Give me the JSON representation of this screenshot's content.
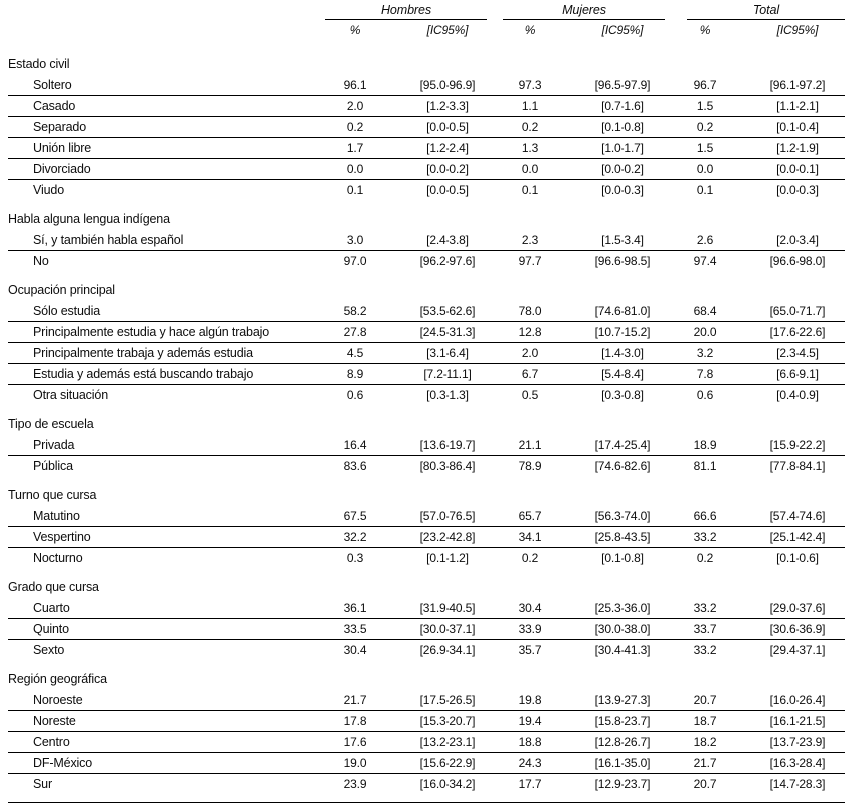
{
  "table": {
    "column_groups": [
      {
        "label": "Hombres"
      },
      {
        "label": "Mujeres"
      },
      {
        "label": "Total"
      }
    ],
    "subheaders": {
      "pct": "%",
      "ic": "[IC95%]"
    },
    "sections": [
      {
        "title": "Estado civil",
        "rows": [
          {
            "label": "Soltero",
            "values": [
              "96.1",
              "[95.0-96.9]",
              "97.3",
              "[96.5-97.9]",
              "96.7",
              "[96.1-97.2]"
            ]
          },
          {
            "label": "Casado",
            "values": [
              "2.0",
              "[1.2-3.3]",
              "1.1",
              "[0.7-1.6]",
              "1.5",
              "[1.1-2.1]"
            ]
          },
          {
            "label": "Separado",
            "values": [
              "0.2",
              "[0.0-0.5]",
              "0.2",
              "[0.1-0.8]",
              "0.2",
              "[0.1-0.4]"
            ]
          },
          {
            "label": "Unión libre",
            "values": [
              "1.7",
              "[1.2-2.4]",
              "1.3",
              "[1.0-1.7]",
              "1.5",
              "[1.2-1.9]"
            ]
          },
          {
            "label": "Divorciado",
            "values": [
              "0.0",
              "[0.0-0.2]",
              "0.0",
              "[0.0-0.2]",
              "0.0",
              "[0.0-0.1]"
            ]
          },
          {
            "label": "Viudo",
            "values": [
              "0.1",
              "[0.0-0.5]",
              "0.1",
              "[0.0-0.3]",
              "0.1",
              "[0.0-0.3]"
            ]
          }
        ]
      },
      {
        "title": "Habla alguna lengua indígena",
        "rows": [
          {
            "label": "Sí, y también habla español",
            "values": [
              "3.0",
              "[2.4-3.8]",
              "2.3",
              "[1.5-3.4]",
              "2.6",
              "[2.0-3.4]"
            ]
          },
          {
            "label": "No",
            "values": [
              "97.0",
              "[96.2-97.6]",
              "97.7",
              "[96.6-98.5]",
              "97.4",
              "[96.6-98.0]"
            ]
          }
        ]
      },
      {
        "title": "Ocupación principal",
        "rows": [
          {
            "label": "Sólo estudia",
            "values": [
              "58.2",
              "[53.5-62.6]",
              "78.0",
              "[74.6-81.0]",
              "68.4",
              "[65.0-71.7]"
            ]
          },
          {
            "label": "Principalmente estudia y hace algún trabajo",
            "values": [
              "27.8",
              "[24.5-31.3]",
              "12.8",
              "[10.7-15.2]",
              "20.0",
              "[17.6-22.6]"
            ]
          },
          {
            "label": "Principalmente trabaja y además estudia",
            "values": [
              "4.5",
              "[3.1-6.4]",
              "2.0",
              "[1.4-3.0]",
              "3.2",
              "[2.3-4.5]"
            ]
          },
          {
            "label": "Estudia y además está buscando trabajo",
            "values": [
              "8.9",
              "[7.2-11.1]",
              "6.7",
              "[5.4-8.4]",
              "7.8",
              "[6.6-9.1]"
            ]
          },
          {
            "label": "Otra situación",
            "values": [
              "0.6",
              "[0.3-1.3]",
              "0.5",
              "[0.3-0.8]",
              "0.6",
              "[0.4-0.9]"
            ]
          }
        ]
      },
      {
        "title": "Tipo de escuela",
        "rows": [
          {
            "label": "Privada",
            "values": [
              "16.4",
              "[13.6-19.7]",
              "21.1",
              "[17.4-25.4]",
              "18.9",
              "[15.9-22.2]"
            ]
          },
          {
            "label": "Pública",
            "values": [
              "83.6",
              "[80.3-86.4]",
              "78.9",
              "[74.6-82.6]",
              "81.1",
              "[77.8-84.1]"
            ]
          }
        ]
      },
      {
        "title": "Turno que cursa",
        "rows": [
          {
            "label": "Matutino",
            "values": [
              "67.5",
              "[57.0-76.5]",
              "65.7",
              "[56.3-74.0]",
              "66.6",
              "[57.4-74.6]"
            ]
          },
          {
            "label": "Vespertino",
            "values": [
              "32.2",
              "[23.2-42.8]",
              "34.1",
              "[25.8-43.5]",
              "33.2",
              "[25.1-42.4]"
            ]
          },
          {
            "label": "Nocturno",
            "values": [
              "0.3",
              "[0.1-1.2]",
              "0.2",
              "[0.1-0.8]",
              "0.2",
              "[0.1-0.6]"
            ]
          }
        ]
      },
      {
        "title": "Grado que cursa",
        "rows": [
          {
            "label": "Cuarto",
            "values": [
              "36.1",
              "[31.9-40.5]",
              "30.4",
              "[25.3-36.0]",
              "33.2",
              "[29.0-37.6]"
            ]
          },
          {
            "label": "Quinto",
            "values": [
              "33.5",
              "[30.0-37.1]",
              "33.9",
              "[30.0-38.0]",
              "33.7",
              "[30.6-36.9]"
            ]
          },
          {
            "label": "Sexto",
            "values": [
              "30.4",
              "[26.9-34.1]",
              "35.7",
              "[30.4-41.3]",
              "33.2",
              "[29.4-37.1]"
            ]
          }
        ]
      },
      {
        "title": "Región geográfica",
        "rows": [
          {
            "label": "Noroeste",
            "values": [
              "21.7",
              "[17.5-26.5]",
              "19.8",
              "[13.9-27.3]",
              "20.7",
              "[16.0-26.4]"
            ]
          },
          {
            "label": "Noreste",
            "values": [
              "17.8",
              "[15.3-20.7]",
              "19.4",
              "[15.8-23.7]",
              "18.7",
              "[16.1-21.5]"
            ]
          },
          {
            "label": "Centro",
            "values": [
              "17.6",
              "[13.2-23.1]",
              "18.8",
              "[12.8-26.7]",
              "18.2",
              "[13.7-23.9]"
            ]
          },
          {
            "label": "DF-México",
            "values": [
              "19.0",
              "[15.6-22.9]",
              "24.3",
              "[16.1-35.0]",
              "21.7",
              "[16.3-28.4]"
            ]
          },
          {
            "label": "Sur",
            "values": [
              "23.9",
              "[16.0-34.2]",
              "17.7",
              "[12.9-23.7]",
              "20.7",
              "[14.7-28.3]"
            ]
          }
        ]
      }
    ]
  }
}
